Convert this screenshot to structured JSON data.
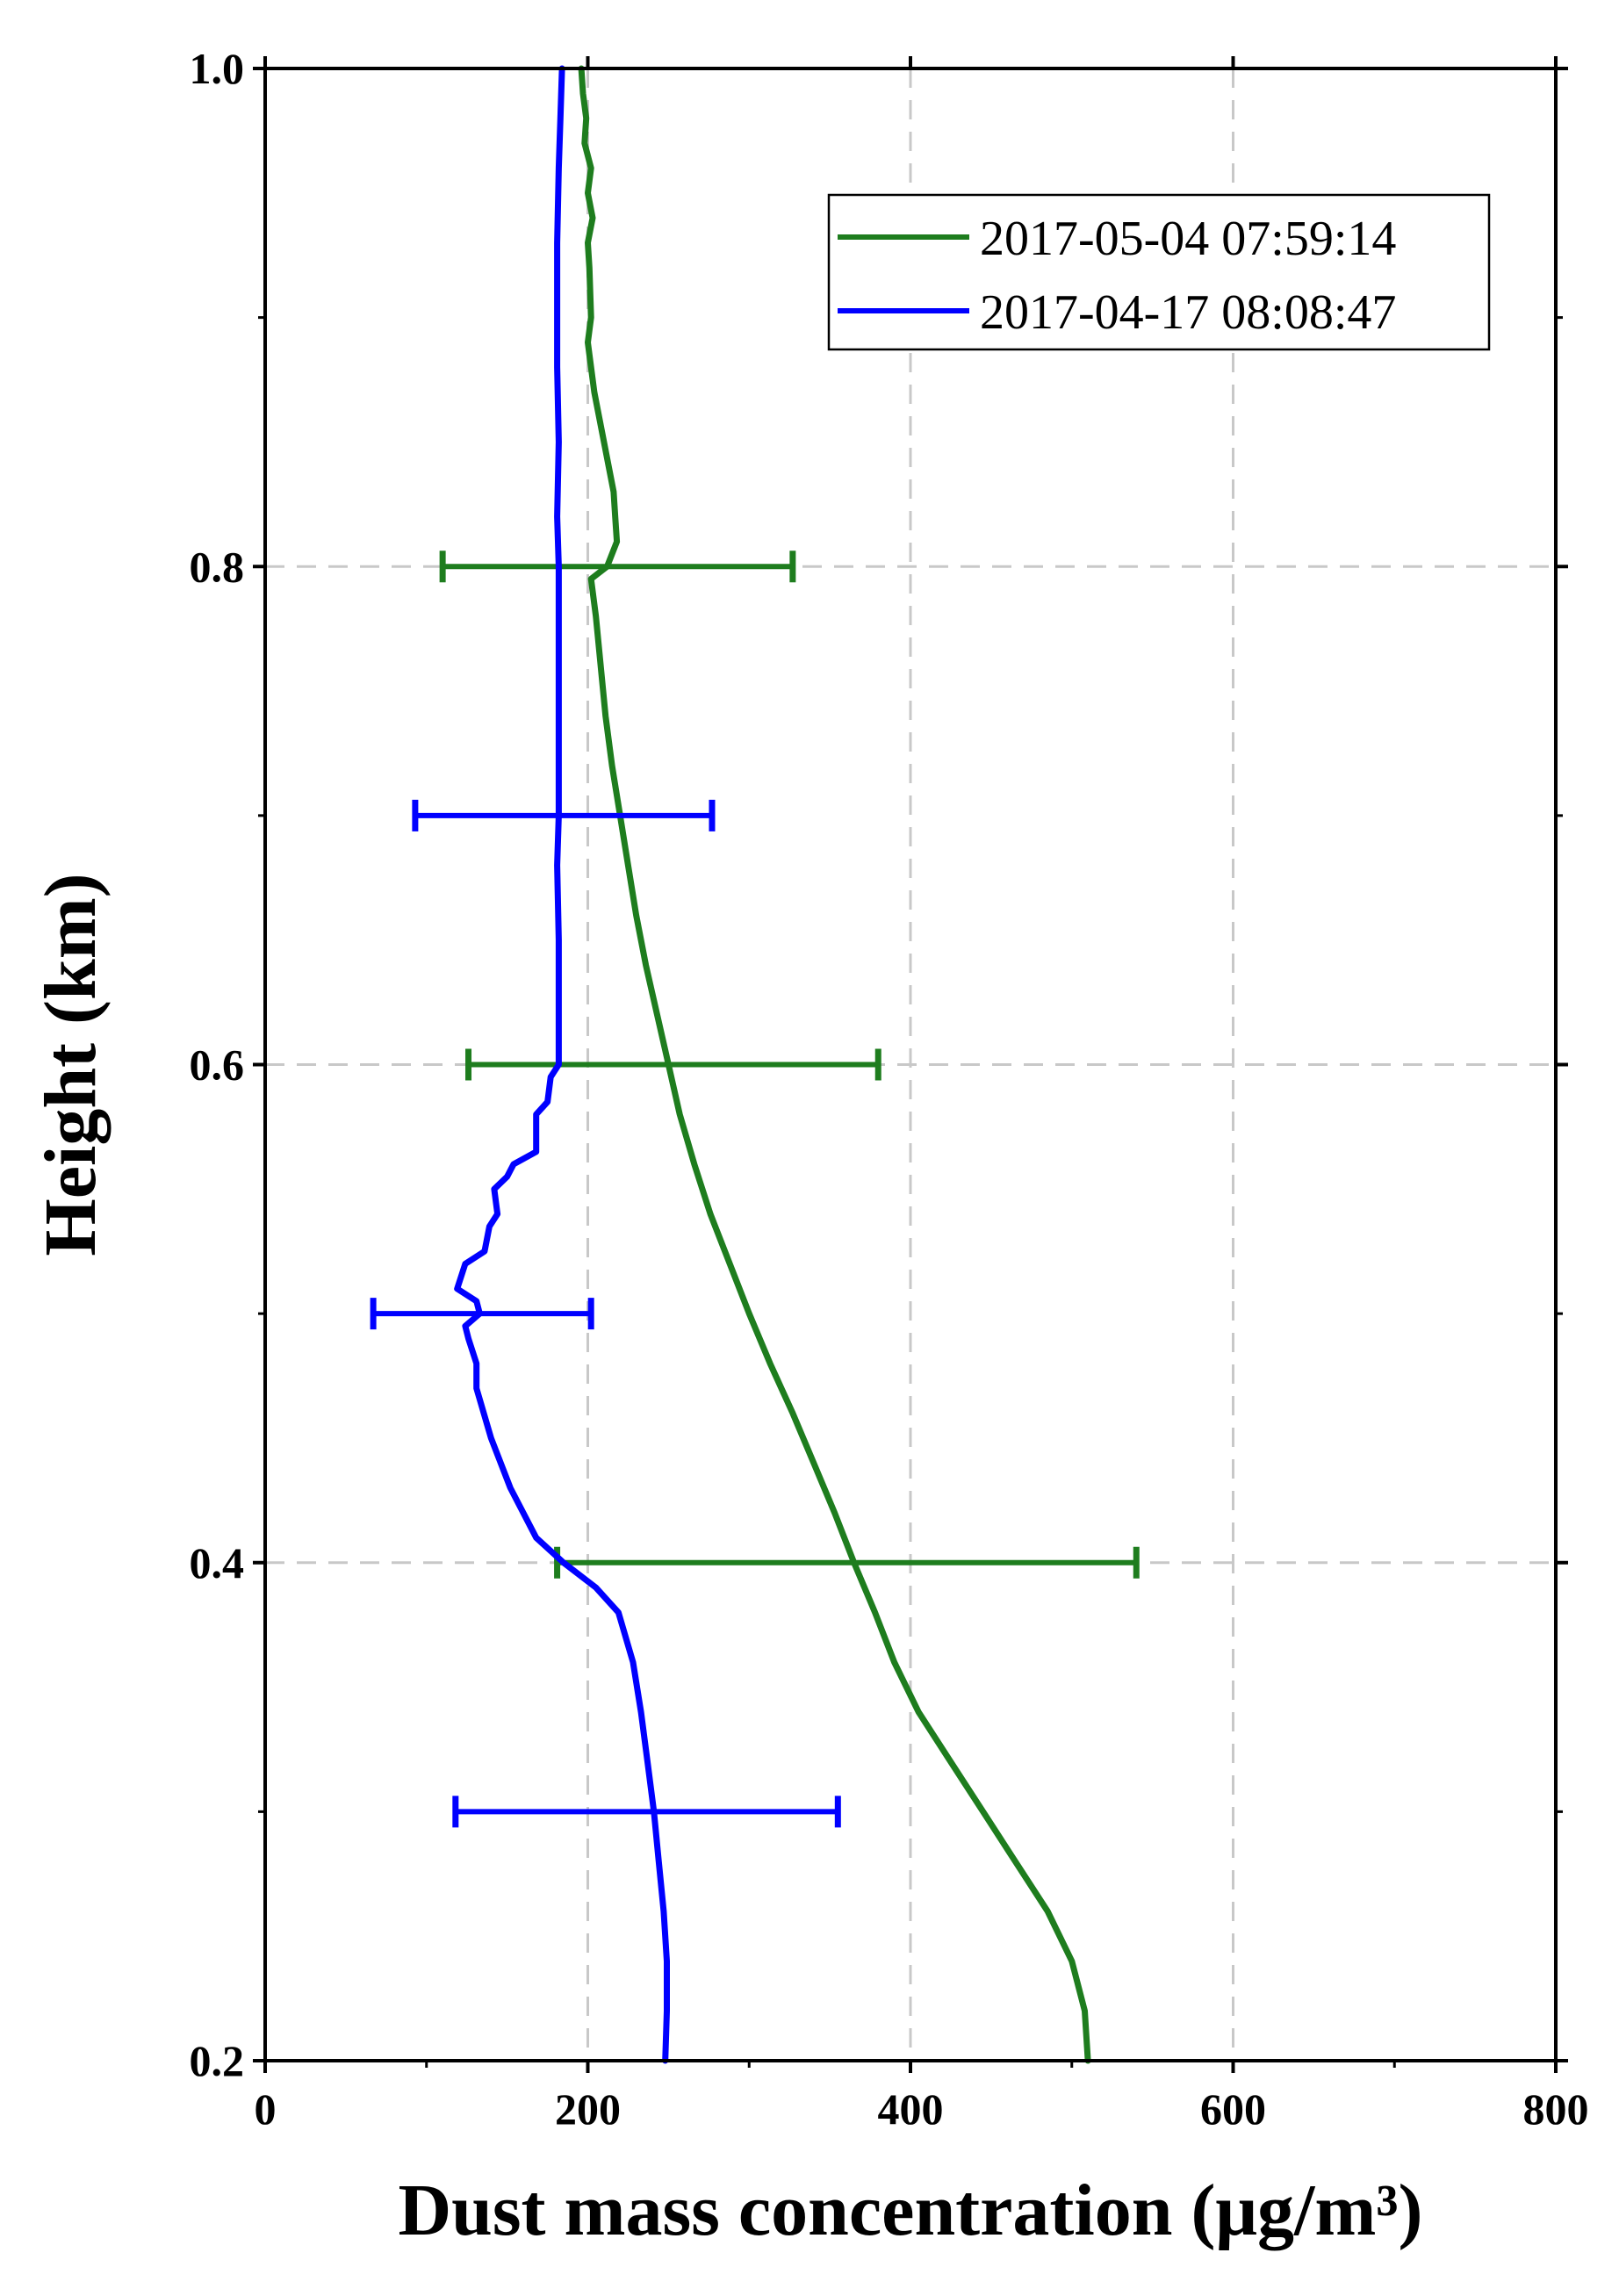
{
  "chart_data": {
    "type": "line",
    "xlabel": "Dust mass concentration (μg/m³)",
    "ylabel": "Height (km)",
    "xlim": [
      0,
      800
    ],
    "ylim": [
      0.2,
      1.0
    ],
    "x_ticks": [
      0,
      200,
      400,
      600,
      800
    ],
    "x_tick_labels": [
      "0",
      "200",
      "400",
      "600",
      "800"
    ],
    "y_ticks": [
      0.2,
      0.4,
      0.6,
      0.8,
      1.0
    ],
    "y_tick_labels": [
      "0.2",
      "0.4",
      "0.6",
      "0.8",
      "1.0"
    ],
    "grid": "dashed at major ticks",
    "legend_position": "top-right",
    "series": [
      {
        "name": "2017-05-04 07:59:14",
        "color": "#1e7d1e",
        "points": [
          [
            510,
            0.2
          ],
          [
            508,
            0.22
          ],
          [
            500,
            0.24
          ],
          [
            485,
            0.26
          ],
          [
            465,
            0.28
          ],
          [
            445,
            0.3
          ],
          [
            425,
            0.32
          ],
          [
            405,
            0.34
          ],
          [
            390,
            0.36
          ],
          [
            378,
            0.38
          ],
          [
            365,
            0.4
          ],
          [
            353,
            0.42
          ],
          [
            340,
            0.44
          ],
          [
            327,
            0.46
          ],
          [
            313,
            0.48
          ],
          [
            300,
            0.5
          ],
          [
            288,
            0.52
          ],
          [
            276,
            0.54
          ],
          [
            266,
            0.56
          ],
          [
            257,
            0.58
          ],
          [
            250,
            0.6
          ],
          [
            243,
            0.62
          ],
          [
            236,
            0.64
          ],
          [
            230,
            0.66
          ],
          [
            225,
            0.68
          ],
          [
            220,
            0.7
          ],
          [
            215,
            0.72
          ],
          [
            211,
            0.74
          ],
          [
            208,
            0.76
          ],
          [
            205,
            0.78
          ],
          [
            202,
            0.795
          ],
          [
            212,
            0.8
          ],
          [
            218,
            0.81
          ],
          [
            217,
            0.82
          ],
          [
            216,
            0.83
          ],
          [
            213,
            0.84
          ],
          [
            210,
            0.85
          ],
          [
            207,
            0.86
          ],
          [
            204,
            0.87
          ],
          [
            200,
            0.89
          ],
          [
            202,
            0.9
          ],
          [
            201,
            0.92
          ],
          [
            200,
            0.93
          ],
          [
            203,
            0.94
          ],
          [
            200,
            0.95
          ],
          [
            202,
            0.96
          ],
          [
            198,
            0.97
          ],
          [
            199,
            0.98
          ],
          [
            197,
            0.99
          ],
          [
            196,
            1.0
          ]
        ],
        "error_bars": [
          {
            "y": 0.8,
            "x": 218,
            "low": 110,
            "high": 327
          },
          {
            "y": 0.6,
            "x": 250,
            "low": 126,
            "high": 380
          },
          {
            "y": 0.4,
            "x": 365,
            "low": 181,
            "high": 540
          }
        ]
      },
      {
        "name": "2017-04-17 08:08:47",
        "color": "#0000ff",
        "points": [
          [
            248,
            0.2
          ],
          [
            249,
            0.22
          ],
          [
            249,
            0.24
          ],
          [
            247,
            0.26
          ],
          [
            244,
            0.28
          ],
          [
            241,
            0.3
          ],
          [
            237,
            0.32
          ],
          [
            233,
            0.34
          ],
          [
            228,
            0.36
          ],
          [
            219,
            0.38
          ],
          [
            205,
            0.39
          ],
          [
            185,
            0.4
          ],
          [
            168,
            0.41
          ],
          [
            152,
            0.43
          ],
          [
            140,
            0.45
          ],
          [
            131,
            0.47
          ],
          [
            131,
            0.48
          ],
          [
            126,
            0.49
          ],
          [
            124,
            0.495
          ],
          [
            133,
            0.5
          ],
          [
            131,
            0.505
          ],
          [
            119,
            0.51
          ],
          [
            124,
            0.52
          ],
          [
            136,
            0.525
          ],
          [
            139,
            0.535
          ],
          [
            144,
            0.54
          ],
          [
            142,
            0.55
          ],
          [
            150,
            0.555
          ],
          [
            154,
            0.56
          ],
          [
            168,
            0.565
          ],
          [
            168,
            0.58
          ],
          [
            175,
            0.585
          ],
          [
            177,
            0.595
          ],
          [
            182,
            0.6
          ],
          [
            182,
            0.62
          ],
          [
            182,
            0.65
          ],
          [
            181,
            0.68
          ],
          [
            182,
            0.7
          ],
          [
            182,
            0.72
          ],
          [
            182,
            0.75
          ],
          [
            182,
            0.78
          ],
          [
            182,
            0.8
          ],
          [
            181,
            0.82
          ],
          [
            182,
            0.85
          ],
          [
            181,
            0.88
          ],
          [
            181,
            0.9
          ],
          [
            181,
            0.93
          ],
          [
            182,
            0.96
          ],
          [
            183,
            0.98
          ],
          [
            184,
            1.0
          ]
        ],
        "error_bars": [
          {
            "y": 0.7,
            "x": 182,
            "low": 93,
            "high": 277
          },
          {
            "y": 0.5,
            "x": 133,
            "low": 67,
            "high": 202
          },
          {
            "y": 0.3,
            "x": 241,
            "low": 118,
            "high": 355
          }
        ]
      }
    ]
  }
}
